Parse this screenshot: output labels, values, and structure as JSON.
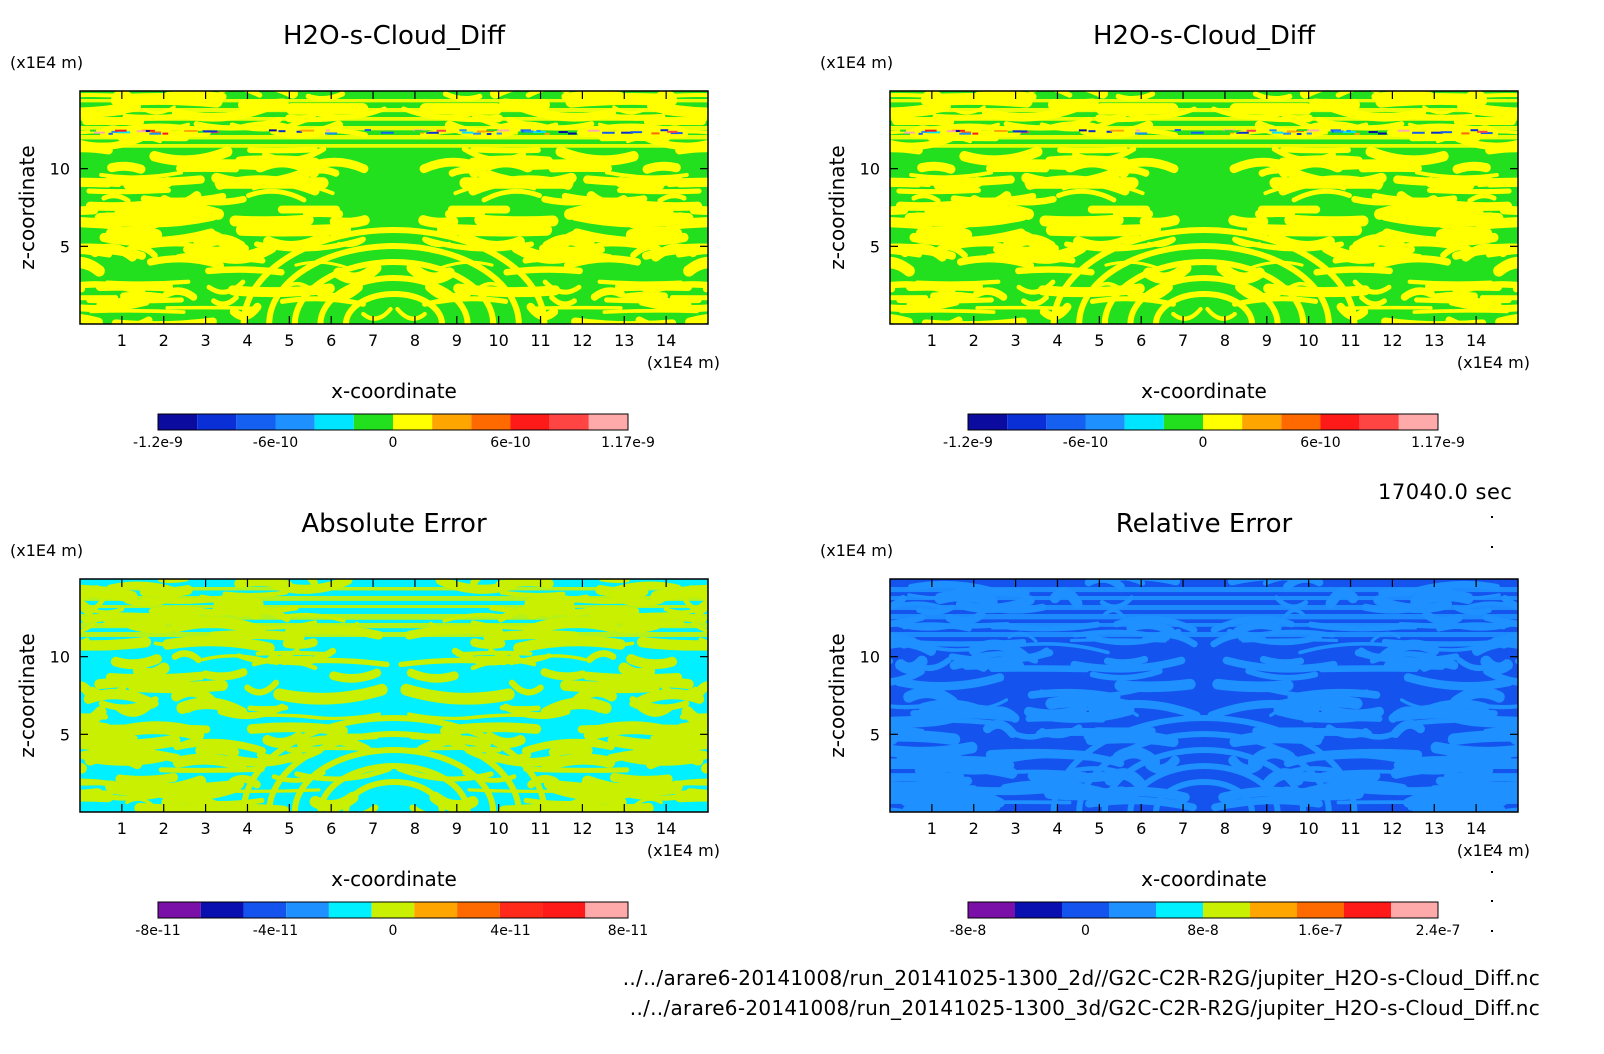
{
  "colors": {
    "diff_levels": [
      "#0b0ba0",
      "#0a2fd6",
      "#1560f0",
      "#1e90ff",
      "#00e5ff",
      "#22e01e",
      "#ffff00",
      "#ffa500",
      "#ff6a00",
      "#ff1a1a",
      "#ff4444",
      "#ffaaaa"
    ],
    "abs_levels": [
      "#7a10a8",
      "#0a0fb0",
      "#1553ee",
      "#1e90ff",
      "#00f0ff",
      "#c8f000",
      "#ffa500",
      "#ff6a00",
      "#ff2a1a",
      "#ff1a1a",
      "#ffaaaa"
    ],
    "rel_levels": [
      "#7a10a8",
      "#0a0fb0",
      "#1553ee",
      "#1e90ff",
      "#00f0ff",
      "#c8f000",
      "#ffa500",
      "#ff6a00",
      "#ff1a1a",
      "#ffaaaa"
    ]
  },
  "time_label": "17040.0 sec",
  "files": [
    "../../arare6-20141008/run_20141025-1300_2d//G2C-C2R-R2G/jupiter_H2O-s-Cloud_Diff.nc",
    "../../arare6-20141008/run_20141025-1300_3d/G2C-C2R-R2G/jupiter_H2O-s-Cloud_Diff.nc"
  ],
  "chart_data": [
    {
      "id": "tl",
      "type": "heatmap",
      "title": "H2O-s-Cloud_Diff",
      "xlabel": "x-coordinate",
      "ylabel": "z-coordinate",
      "x_unit": "(x1E4 m)",
      "y_unit": "(x1E4 m)",
      "x_ticks": [
        "1",
        "2",
        "3",
        "4",
        "5",
        "6",
        "7",
        "8",
        "9",
        "10",
        "11",
        "12",
        "13",
        "14"
      ],
      "y_ticks": [
        "5",
        "10"
      ],
      "xlim": [
        0,
        15
      ],
      "ylim": [
        0,
        15
      ],
      "palette": "diff_levels",
      "dominant_levels": [
        5,
        6
      ],
      "colorbar_labels": [
        "-1.2e-9",
        "-6e-10",
        "0",
        "6e-10",
        "1.17e-9"
      ]
    },
    {
      "id": "tr",
      "type": "heatmap",
      "title": "H2O-s-Cloud_Diff",
      "xlabel": "x-coordinate",
      "ylabel": "z-coordinate",
      "x_unit": "(x1E4 m)",
      "y_unit": "(x1E4 m)",
      "x_ticks": [
        "1",
        "2",
        "3",
        "4",
        "5",
        "6",
        "7",
        "8",
        "9",
        "10",
        "11",
        "12",
        "13",
        "14"
      ],
      "y_ticks": [
        "5",
        "10"
      ],
      "xlim": [
        0,
        15
      ],
      "ylim": [
        0,
        15
      ],
      "palette": "diff_levels",
      "dominant_levels": [
        5,
        6
      ],
      "colorbar_labels": [
        "-1.2e-9",
        "-6e-10",
        "0",
        "6e-10",
        "1.17e-9"
      ]
    },
    {
      "id": "bl",
      "type": "heatmap",
      "title": "Absolute Error",
      "xlabel": "x-coordinate",
      "ylabel": "z-coordinate",
      "x_unit": "(x1E4 m)",
      "y_unit": "(x1E4 m)",
      "x_ticks": [
        "1",
        "2",
        "3",
        "4",
        "5",
        "6",
        "7",
        "8",
        "9",
        "10",
        "11",
        "12",
        "13",
        "14"
      ],
      "y_ticks": [
        "5",
        "10"
      ],
      "xlim": [
        0,
        15
      ],
      "ylim": [
        0,
        15
      ],
      "palette": "abs_levels",
      "dominant_levels": [
        4,
        5
      ],
      "colorbar_labels": [
        "-8e-11",
        "-4e-11",
        "0",
        "4e-11",
        "8e-11"
      ]
    },
    {
      "id": "br",
      "type": "heatmap",
      "title": "Relative Error",
      "xlabel": "x-coordinate",
      "ylabel": "z-coordinate",
      "x_unit": "(x1E4 m)",
      "y_unit": "(x1E4 m)",
      "x_ticks": [
        "1",
        "2",
        "3",
        "4",
        "5",
        "6",
        "7",
        "8",
        "9",
        "10",
        "11",
        "12",
        "13",
        "14"
      ],
      "y_ticks": [
        "5",
        "10"
      ],
      "xlim": [
        0,
        15
      ],
      "ylim": [
        0,
        15
      ],
      "palette": "rel_levels",
      "dominant_levels": [
        2,
        3
      ],
      "colorbar_labels": [
        "-8e-8",
        "0",
        "8e-8",
        "1.6e-7",
        "2.4e-7"
      ]
    }
  ]
}
